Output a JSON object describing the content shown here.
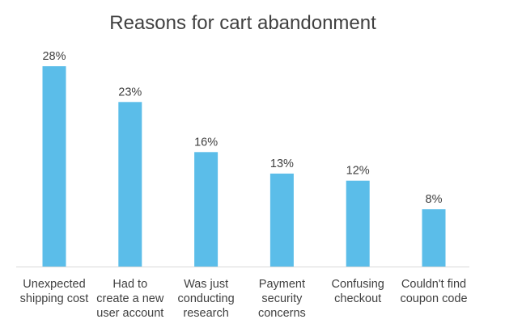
{
  "chart_data": {
    "type": "bar",
    "title": "Reasons for cart abandonment",
    "categories": [
      [
        "Unexpected",
        "shipping cost"
      ],
      [
        "Had to",
        "create a new",
        "user account"
      ],
      [
        "Was just",
        "conducting",
        "research"
      ],
      [
        "Payment",
        "security",
        "concerns"
      ],
      [
        "Confusing",
        "checkout"
      ],
      [
        "Couldn't find",
        "coupon code"
      ]
    ],
    "values": [
      28,
      23,
      16,
      13,
      12,
      8
    ],
    "data_labels": [
      "28%",
      "23%",
      "16%",
      "13%",
      "12%",
      "8%"
    ],
    "unit": "%",
    "ylim": [
      0,
      28
    ],
    "grid": false,
    "legend": "none",
    "bar_color": "#5bbde9",
    "axis_color": "#d9d9d9",
    "text_color": "#404040"
  }
}
